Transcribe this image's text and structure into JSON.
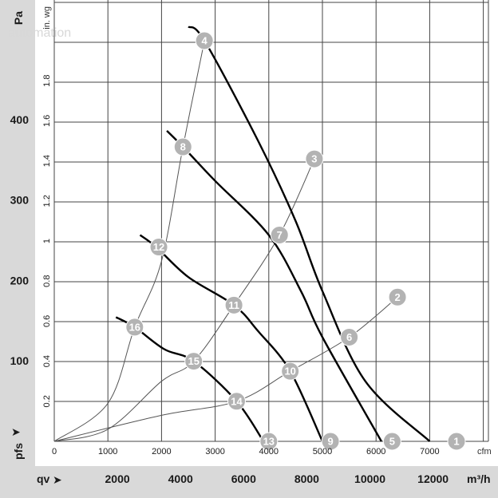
{
  "chart_data": {
    "type": "line",
    "x_axis_top_unit": "cfm",
    "x_axis_top_ticks": [
      "0",
      "1000",
      "2000",
      "3000",
      "4000",
      "5000",
      "6000",
      "7000"
    ],
    "x_axis_bottom_label": "qv",
    "x_axis_bottom_unit": "m³/h",
    "x_axis_bottom_ticks": [
      "2000",
      "4000",
      "6000",
      "8000",
      "10000",
      "12000"
    ],
    "y_axis_left_label": "Pa",
    "y_axis_left_ticks": [
      "100",
      "200",
      "300",
      "400"
    ],
    "y_axis_inner_unit": "in. wg",
    "y_axis_inner_ticks": [
      "0.2",
      "0.4",
      "0.6",
      "0.8",
      "1",
      "1.2",
      "1.4",
      "1.6",
      "1.8"
    ],
    "y_axis_bottom_label": "pfs",
    "xlim_cfm": [
      0,
      8300
    ],
    "ylim_inwg": [
      0,
      2.0
    ],
    "grid": true,
    "watermark": "automation",
    "fan_curves": [
      {
        "points": [
          [
            2500,
            2.07
          ],
          [
            2800,
            2.0
          ],
          [
            3800,
            1.5
          ],
          [
            4500,
            1.1
          ],
          [
            5000,
            0.75
          ],
          [
            5800,
            0.3
          ],
          [
            7000,
            0.0
          ]
        ]
      },
      {
        "points": [
          [
            2100,
            1.55
          ],
          [
            2400,
            1.47
          ],
          [
            3000,
            1.3
          ],
          [
            4000,
            1.03
          ],
          [
            4600,
            0.75
          ],
          [
            5000,
            0.52
          ],
          [
            6100,
            0.0
          ]
        ]
      },
      {
        "points": [
          [
            1600,
            1.03
          ],
          [
            1900,
            0.97
          ],
          [
            2500,
            0.82
          ],
          [
            3350,
            0.68
          ],
          [
            3800,
            0.55
          ],
          [
            4400,
            0.35
          ],
          [
            5000,
            0.0
          ]
        ]
      },
      {
        "points": [
          [
            1150,
            0.62
          ],
          [
            1500,
            0.57
          ],
          [
            2050,
            0.46
          ],
          [
            2600,
            0.4
          ],
          [
            3400,
            0.2
          ],
          [
            3900,
            0.0
          ]
        ]
      }
    ],
    "system_curves": [
      {
        "points": [
          [
            0,
            0
          ],
          [
            1000,
            0.19
          ],
          [
            1500,
            0.57
          ],
          [
            2000,
            0.9
          ],
          [
            2400,
            1.47
          ],
          [
            2800,
            2.0
          ]
        ]
      },
      {
        "points": [
          [
            0,
            0
          ],
          [
            1000,
            0.06
          ],
          [
            2000,
            0.3
          ],
          [
            2600,
            0.4
          ],
          [
            3350,
            0.68
          ],
          [
            4200,
            1.03
          ],
          [
            4850,
            1.41
          ]
        ]
      },
      {
        "points": [
          [
            0,
            0
          ],
          [
            2000,
            0.13
          ],
          [
            3400,
            0.2
          ],
          [
            4400,
            0.35
          ],
          [
            5500,
            0.52
          ],
          [
            6400,
            0.72
          ]
        ]
      }
    ],
    "operating_points": [
      {
        "label": "1",
        "x": 7500,
        "y": 0.0
      },
      {
        "label": "2",
        "x": 6400,
        "y": 0.72
      },
      {
        "label": "3",
        "x": 4850,
        "y": 1.41
      },
      {
        "label": "4",
        "x": 2800,
        "y": 2.0
      },
      {
        "label": "5",
        "x": 6300,
        "y": 0.0
      },
      {
        "label": "6",
        "x": 5500,
        "y": 0.52
      },
      {
        "label": "7",
        "x": 4200,
        "y": 1.03
      },
      {
        "label": "8",
        "x": 2400,
        "y": 1.47
      },
      {
        "label": "9",
        "x": 5150,
        "y": 0.0
      },
      {
        "label": "10",
        "x": 4400,
        "y": 0.35
      },
      {
        "label": "11",
        "x": 3350,
        "y": 0.68
      },
      {
        "label": "12",
        "x": 1950,
        "y": 0.97
      },
      {
        "label": "13",
        "x": 4000,
        "y": 0.0
      },
      {
        "label": "14",
        "x": 3400,
        "y": 0.2
      },
      {
        "label": "15",
        "x": 2600,
        "y": 0.4
      },
      {
        "label": "16",
        "x": 1500,
        "y": 0.57
      }
    ]
  }
}
